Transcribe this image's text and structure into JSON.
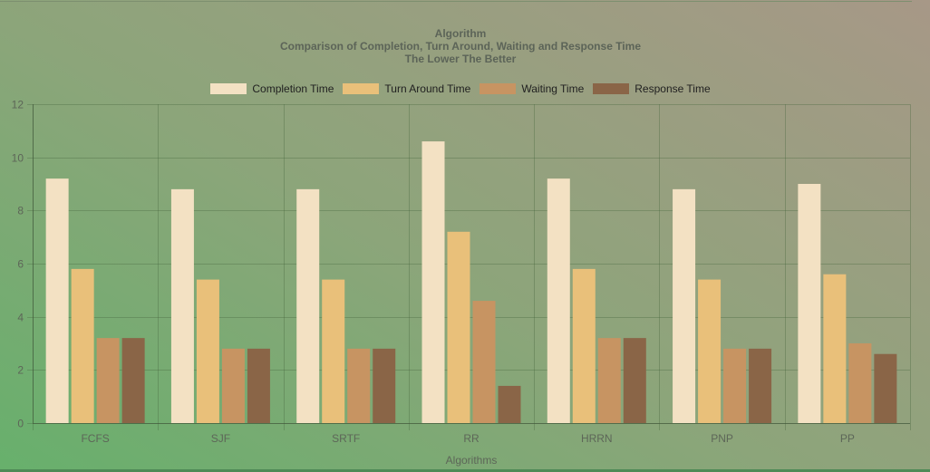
{
  "chart_data": {
    "type": "bar",
    "title": "Algorithm",
    "subtitle": "Comparison of Completion, Turn Around, Waiting and Response Time",
    "subtitle2": "The Lower The Better",
    "xlabel": "Algorithms",
    "ylabel": "",
    "ylim": [
      0,
      12
    ],
    "yticks": [
      0,
      2,
      4,
      6,
      8,
      10,
      12
    ],
    "grid": true,
    "legend_position": "top",
    "categories": [
      "FCFS",
      "SJF",
      "SRTF",
      "RR",
      "HRRN",
      "PNP",
      "PP"
    ],
    "series": [
      {
        "name": "Completion Time",
        "color": "#f3e1c3",
        "values": [
          9.2,
          8.8,
          8.8,
          10.6,
          9.2,
          8.8,
          9.0
        ]
      },
      {
        "name": "Turn Around Time",
        "color": "#e9c07a",
        "values": [
          5.8,
          5.4,
          5.4,
          7.2,
          5.8,
          5.4,
          5.6
        ]
      },
      {
        "name": "Waiting Time",
        "color": "#c79462",
        "values": [
          3.2,
          2.8,
          2.8,
          4.6,
          3.2,
          2.8,
          3.0
        ]
      },
      {
        "name": "Response Time",
        "color": "#8a6547",
        "values": [
          3.2,
          2.8,
          2.8,
          1.4,
          3.2,
          2.8,
          2.6
        ]
      }
    ]
  }
}
